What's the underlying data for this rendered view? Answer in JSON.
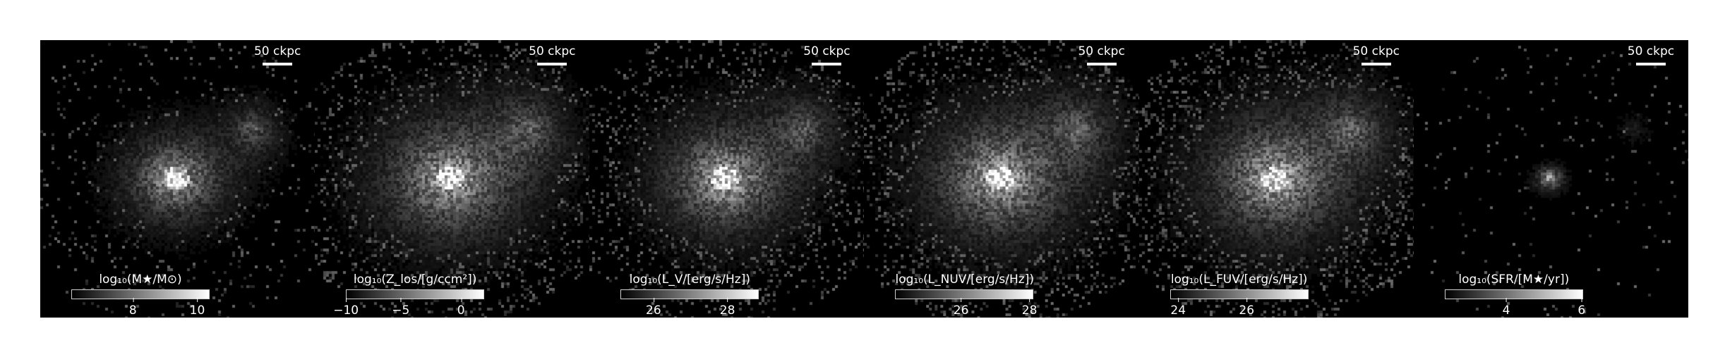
{
  "scale_bar_label": "50 ckpc",
  "panels": [
    {
      "name": "stellar-mass",
      "label": "log₁₀(M★/M⊙)",
      "ticks": [
        "8",
        "10"
      ],
      "ext": 0.7,
      "noise": 0.25,
      "sf": false
    },
    {
      "name": "metallicity",
      "label": "log₁₀(Z_los/[g/ccm²])",
      "ticks": [
        "−10",
        "−5",
        "0"
      ],
      "ext": 1.0,
      "noise": 0.55,
      "sf": false
    },
    {
      "name": "luminosity-v",
      "label": "log₁₀(L_V/[erg/s/Hz])",
      "ticks": [
        "26",
        "28"
      ],
      "ext": 0.9,
      "noise": 0.5,
      "sf": false
    },
    {
      "name": "luminosity-nuv",
      "label": "log₁₀(L_NUV/[erg/s/Hz])",
      "ticks": [
        "26",
        "28"
      ],
      "ext": 1.0,
      "noise": 0.65,
      "sf": false
    },
    {
      "name": "luminosity-fuv",
      "label": "log₁₀(L_FUV/[erg/s/Hz])",
      "ticks": [
        "24",
        "26"
      ],
      "ext": 1.0,
      "noise": 0.7,
      "sf": false
    },
    {
      "name": "star-formation-rate",
      "label": "log₁₀(SFR/[M★/yr])",
      "ticks": [
        "4",
        "6"
      ],
      "ext": 0.4,
      "noise": 0.1,
      "sf": true
    }
  ]
}
